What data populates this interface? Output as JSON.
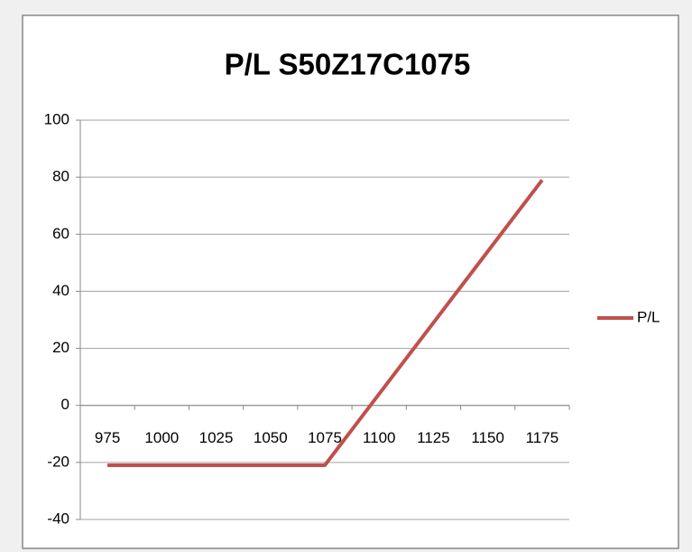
{
  "chart_data": {
    "type": "line",
    "title": "P/L S50Z17C1075",
    "categories": [
      975,
      1000,
      1025,
      1050,
      1075,
      1100,
      1125,
      1150,
      1175
    ],
    "series": [
      {
        "name": "P/L",
        "color": "#c0504d",
        "values": [
          -21,
          -21,
          -21,
          -21,
          -21,
          4,
          29,
          54,
          79
        ]
      }
    ],
    "ylim": [
      -40,
      100
    ],
    "yticks": [
      -40,
      -20,
      0,
      20,
      40,
      60,
      80,
      100
    ],
    "grid": true,
    "legend": "right"
  }
}
